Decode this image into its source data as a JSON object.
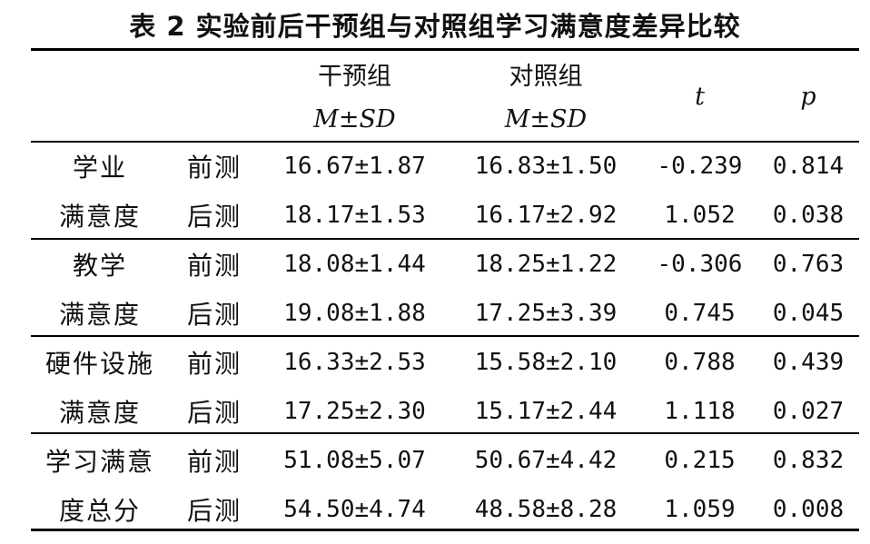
{
  "caption": "表 2   实验前后干预组与对照组学习满意度差异比较",
  "header": {
    "group1": "干预组",
    "group2": "对照组",
    "stat_sub": "M±SD",
    "t": "t",
    "p": "p"
  },
  "rows": [
    {
      "category_line1": "学业",
      "category_line2": "满意度",
      "pre": {
        "label": "前测",
        "g1": "16.67±1.87",
        "g2": "16.83±1.50",
        "t": "-0.239",
        "p": "0.814"
      },
      "post": {
        "label": "后测",
        "g1": "18.17±1.53",
        "g2": "16.17±2.92",
        "t": "1.052",
        "p": "0.038"
      }
    },
    {
      "category_line1": "教学",
      "category_line2": "满意度",
      "pre": {
        "label": "前测",
        "g1": "18.08±1.44",
        "g2": "18.25±1.22",
        "t": "-0.306",
        "p": "0.763"
      },
      "post": {
        "label": "后测",
        "g1": "19.08±1.88",
        "g2": "17.25±3.39",
        "t": "0.745",
        "p": "0.045"
      }
    },
    {
      "category_line1": "硬件设施",
      "category_line2": "满意度",
      "pre": {
        "label": "前测",
        "g1": "16.33±2.53",
        "g2": "15.58±2.10",
        "t": "0.788",
        "p": "0.439"
      },
      "post": {
        "label": "后测",
        "g1": "17.25±2.30",
        "g2": "15.17±2.44",
        "t": "1.118",
        "p": "0.027"
      }
    },
    {
      "category_line1": "学习满意",
      "category_line2": "度总分",
      "pre": {
        "label": "前测",
        "g1": "51.08±5.07",
        "g2": "50.67±4.42",
        "t": "0.215",
        "p": "0.832"
      },
      "post": {
        "label": "后测",
        "g1": "54.50±4.74",
        "g2": "48.58±8.28",
        "t": "1.059",
        "p": "0.008"
      }
    }
  ]
}
